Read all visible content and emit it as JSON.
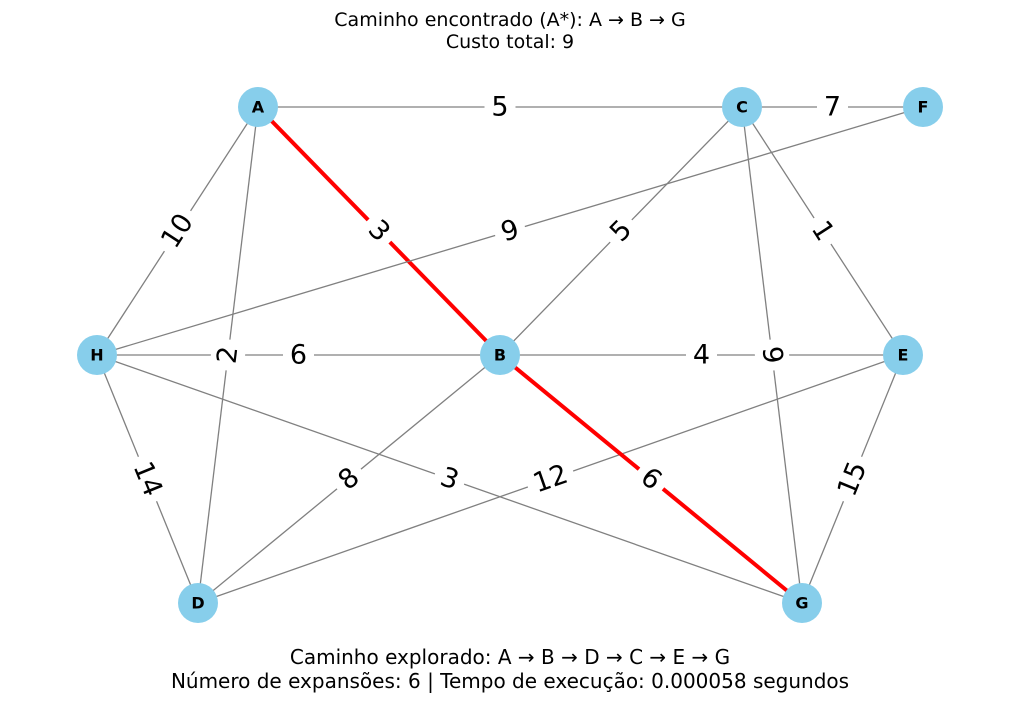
{
  "title": {
    "line1": "Caminho encontrado (A*): A → B → G",
    "line2": "Custo total: 9"
  },
  "footer": {
    "line1": "Caminho explorado: A → B → D → C → E → G",
    "line2": "Número de expansões: 6 | Tempo de execução: 0.000058 segundos"
  },
  "colors": {
    "node_fill": "#87ceeb",
    "edge": "#808080",
    "path_edge": "#ff0000"
  },
  "graph": {
    "nodes": [
      "A",
      "C",
      "F",
      "H",
      "B",
      "E",
      "D",
      "G"
    ],
    "edges": [
      {
        "from": "A",
        "to": "C",
        "weight": "5",
        "on_path": false
      },
      {
        "from": "C",
        "to": "F",
        "weight": "7",
        "on_path": false
      },
      {
        "from": "A",
        "to": "H",
        "weight": "10",
        "on_path": false
      },
      {
        "from": "A",
        "to": "D",
        "weight": "2",
        "on_path": false
      },
      {
        "from": "A",
        "to": "B",
        "weight": "3",
        "on_path": true
      },
      {
        "from": "H",
        "to": "F",
        "weight": "9",
        "on_path": false
      },
      {
        "from": "C",
        "to": "B",
        "weight": "5",
        "on_path": false
      },
      {
        "from": "C",
        "to": "E",
        "weight": "1",
        "on_path": false
      },
      {
        "from": "C",
        "to": "G",
        "weight": "9",
        "on_path": false
      },
      {
        "from": "H",
        "to": "B",
        "weight": "6",
        "on_path": false
      },
      {
        "from": "B",
        "to": "E",
        "weight": "4",
        "on_path": false
      },
      {
        "from": "H",
        "to": "D",
        "weight": "14",
        "on_path": false
      },
      {
        "from": "H",
        "to": "G",
        "weight": "3",
        "on_path": false
      },
      {
        "from": "B",
        "to": "D",
        "weight": "8",
        "on_path": false
      },
      {
        "from": "D",
        "to": "E",
        "weight": "12",
        "on_path": false
      },
      {
        "from": "B",
        "to": "G",
        "weight": "6",
        "on_path": true
      },
      {
        "from": "E",
        "to": "G",
        "weight": "15",
        "on_path": false
      }
    ]
  }
}
